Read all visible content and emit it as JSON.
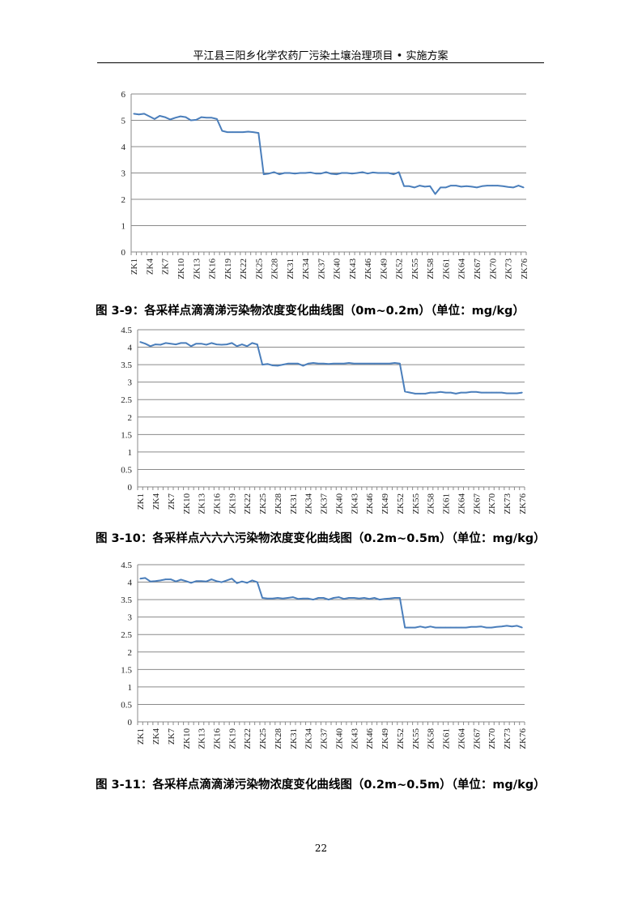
{
  "header": {
    "title": "平江县三阳乡化学农药厂污染土壤治理项目 • 实施方案"
  },
  "page_number": "22",
  "chart_data": [
    {
      "type": "line",
      "caption": "图 3-9：各采样点滴滴涕污染物浓度变化曲线图（0m~0.2m）（单位：mg/kg）",
      "ylim": [
        0,
        6
      ],
      "yticks": [
        "0",
        "1",
        "2",
        "3",
        "4",
        "5",
        "6"
      ],
      "ytick_values": [
        0,
        1,
        2,
        3,
        4,
        5,
        6
      ],
      "xtick_labels": [
        "ZK1",
        "ZK4",
        "ZK7",
        "ZK10",
        "ZK13",
        "ZK16",
        "ZK19",
        "ZK22",
        "ZK25",
        "ZK28",
        "ZK31",
        "ZK34",
        "ZK37",
        "ZK40",
        "ZK43",
        "ZK46",
        "ZK49",
        "ZK52",
        "ZK55",
        "ZK58",
        "ZK61",
        "ZK64",
        "ZK67",
        "ZK70",
        "ZK73",
        "ZK76"
      ],
      "grid": true,
      "color": "#4a7ebb",
      "values": [
        5.25,
        5.22,
        5.25,
        5.15,
        5.05,
        5.17,
        5.12,
        5.03,
        5.1,
        5.15,
        5.12,
        5.0,
        5.02,
        5.12,
        5.1,
        5.1,
        5.05,
        4.6,
        4.55,
        4.55,
        4.55,
        4.55,
        4.57,
        4.55,
        4.52,
        2.95,
        2.98,
        3.03,
        2.95,
        3.0,
        3.0,
        2.98,
        3.0,
        3.0,
        3.02,
        2.98,
        2.98,
        3.03,
        2.97,
        2.95,
        3.0,
        3.0,
        2.98,
        3.0,
        3.03,
        2.98,
        3.02,
        3.0,
        3.0,
        3.0,
        2.95,
        3.03,
        2.5,
        2.5,
        2.45,
        2.52,
        2.48,
        2.5,
        2.2,
        2.45,
        2.45,
        2.52,
        2.52,
        2.48,
        2.5,
        2.48,
        2.45,
        2.5,
        2.52,
        2.52,
        2.52,
        2.5,
        2.47,
        2.45,
        2.52,
        2.45
      ]
    },
    {
      "type": "line",
      "caption": "图 3-10：各采样点六六六污染物浓度变化曲线图（0.2m~0.5m）（单位：mg/kg）",
      "ylim": [
        0,
        4.5
      ],
      "yticks": [
        "0",
        "0.5",
        "1",
        "1.5",
        "2",
        "2.5",
        "3",
        "3.5",
        "4",
        "4.5"
      ],
      "ytick_values": [
        0,
        0.5,
        1,
        1.5,
        2,
        2.5,
        3,
        3.5,
        4,
        4.5
      ],
      "xtick_labels": [
        "ZK1",
        "ZK4",
        "ZK7",
        "ZK10",
        "ZK13",
        "ZK16",
        "ZK19",
        "ZK22",
        "ZK25",
        "ZK28",
        "ZK31",
        "ZK34",
        "ZK37",
        "ZK40",
        "ZK43",
        "ZK46",
        "ZK49",
        "ZK52",
        "ZK55",
        "ZK58",
        "ZK61",
        "ZK64",
        "ZK67",
        "ZK70",
        "ZK73",
        "ZK76"
      ],
      "grid": true,
      "color": "#4a7ebb",
      "values": [
        4.15,
        4.1,
        4.03,
        4.08,
        4.07,
        4.12,
        4.1,
        4.08,
        4.12,
        4.12,
        4.03,
        4.1,
        4.1,
        4.07,
        4.12,
        4.08,
        4.07,
        4.08,
        4.12,
        4.03,
        4.08,
        4.03,
        4.12,
        4.08,
        3.5,
        3.52,
        3.48,
        3.47,
        3.5,
        3.53,
        3.53,
        3.53,
        3.47,
        3.53,
        3.55,
        3.53,
        3.53,
        3.52,
        3.53,
        3.53,
        3.53,
        3.55,
        3.53,
        3.53,
        3.53,
        3.53,
        3.53,
        3.53,
        3.53,
        3.53,
        3.55,
        3.53,
        2.73,
        2.7,
        2.67,
        2.67,
        2.67,
        2.7,
        2.7,
        2.72,
        2.7,
        2.7,
        2.67,
        2.7,
        2.7,
        2.72,
        2.72,
        2.7,
        2.7,
        2.7,
        2.7,
        2.7,
        2.68,
        2.68,
        2.68,
        2.7
      ]
    },
    {
      "type": "line",
      "caption": "图 3-11：各采样点滴滴涕污染物浓度变化曲线图（0.2m~0.5m）（单位：mg/kg）",
      "ylim": [
        0,
        4.5
      ],
      "yticks": [
        "0",
        "0.5",
        "1",
        "1.5",
        "2",
        "2.5",
        "3",
        "3.5",
        "4",
        "4.5"
      ],
      "ytick_values": [
        0,
        0.5,
        1,
        1.5,
        2,
        2.5,
        3,
        3.5,
        4,
        4.5
      ],
      "xtick_labels": [
        "ZK1",
        "ZK4",
        "ZK7",
        "ZK10",
        "ZK13",
        "ZK16",
        "ZK19",
        "ZK22",
        "ZK25",
        "ZK28",
        "ZK31",
        "ZK34",
        "ZK37",
        "ZK40",
        "ZK43",
        "ZK46",
        "ZK49",
        "ZK52",
        "ZK55",
        "ZK58",
        "ZK61",
        "ZK64",
        "ZK67",
        "ZK70",
        "ZK73",
        "ZK76"
      ],
      "grid": true,
      "color": "#4a7ebb",
      "values": [
        4.1,
        4.12,
        4.02,
        4.03,
        4.05,
        4.08,
        4.08,
        4.02,
        4.07,
        4.03,
        3.98,
        4.03,
        4.03,
        4.02,
        4.08,
        4.03,
        4.0,
        4.05,
        4.1,
        3.97,
        4.02,
        3.98,
        4.05,
        4.0,
        3.55,
        3.53,
        3.53,
        3.55,
        3.53,
        3.55,
        3.57,
        3.52,
        3.53,
        3.53,
        3.5,
        3.55,
        3.55,
        3.5,
        3.55,
        3.57,
        3.52,
        3.55,
        3.55,
        3.53,
        3.55,
        3.52,
        3.55,
        3.5,
        3.52,
        3.53,
        3.55,
        3.55,
        2.7,
        2.7,
        2.7,
        2.73,
        2.7,
        2.73,
        2.7,
        2.7,
        2.7,
        2.7,
        2.7,
        2.7,
        2.7,
        2.72,
        2.72,
        2.73,
        2.7,
        2.7,
        2.72,
        2.73,
        2.75,
        2.73,
        2.75,
        2.7
      ]
    }
  ]
}
